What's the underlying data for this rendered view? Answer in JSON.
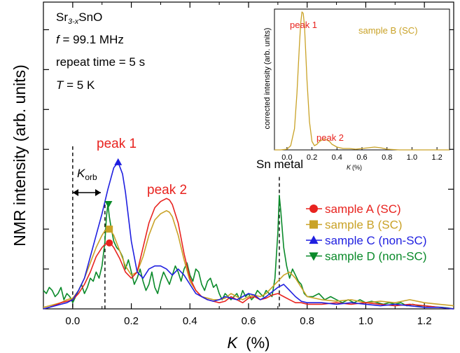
{
  "chart_data": [
    {
      "id": "main",
      "type": "line",
      "xlabel_var": "K",
      "xlabel_unit": "(%)",
      "ylabel": "NMR intensity (arb. units)",
      "xlim": [
        -0.1,
        1.3
      ],
      "ylim": [
        0,
        1.0
      ],
      "x_ticks": [
        0.0,
        0.2,
        0.4,
        0.6,
        0.8,
        1.0,
        1.2
      ],
      "x_tick_labels": [
        "0.0",
        "0.2",
        "0.4",
        "0.6",
        "0.8",
        "1.0",
        "1.2"
      ],
      "x_minor_ticks": [
        -0.1,
        0.1,
        0.3,
        0.5,
        0.7,
        0.9,
        1.1,
        1.3
      ],
      "y_ticks": [
        0.13,
        0.26,
        0.39,
        0.52,
        0.65,
        0.78,
        0.91
      ],
      "grid": false,
      "legend_position": "right",
      "info_lines": [
        {
          "prefix": "Sr",
          "sub": "3-x",
          "suffix": "SnO"
        },
        {
          "var": "f",
          "text": " = 99.1 MHz"
        },
        {
          "text": "repeat time = 5 s"
        },
        {
          "var": "T",
          "text": " = 5 K"
        }
      ],
      "annotations": [
        {
          "text": "peak 1",
          "color": "#e8231f"
        },
        {
          "text": "peak 2",
          "color": "#e8231f"
        },
        {
          "text": "Sn metal",
          "color": "#000000"
        },
        {
          "var": "K",
          "sub": "orb",
          "color": "#000000"
        }
      ],
      "reference_lines": [
        0.0,
        0.11,
        0.705
      ],
      "series": [
        {
          "name": "sample A (SC)",
          "color": "#e8231f",
          "marker": "circle",
          "marker_point": [
            0.125,
            0.215
          ],
          "x": [
            -0.1,
            -0.08,
            -0.06,
            -0.04,
            -0.02,
            0.0,
            0.02,
            0.04,
            0.06,
            0.08,
            0.1,
            0.11,
            0.12,
            0.13,
            0.14,
            0.16,
            0.18,
            0.2,
            0.22,
            0.24,
            0.26,
            0.28,
            0.3,
            0.32,
            0.33,
            0.34,
            0.36,
            0.38,
            0.4,
            0.42,
            0.44,
            0.46,
            0.48,
            0.5,
            0.52,
            0.54,
            0.56,
            0.58,
            0.6,
            0.62,
            0.64,
            0.66,
            0.68,
            0.7,
            0.72,
            0.74,
            0.76,
            0.78,
            0.8,
            0.85,
            0.9,
            0.95,
            1.0,
            1.05,
            1.1,
            1.15,
            1.2,
            1.25,
            1.3
          ],
          "y": [
            0.0,
            0.005,
            0.012,
            0.02,
            0.025,
            0.03,
            0.05,
            0.08,
            0.12,
            0.17,
            0.2,
            0.21,
            0.215,
            0.212,
            0.2,
            0.165,
            0.12,
            0.1,
            0.12,
            0.2,
            0.28,
            0.33,
            0.35,
            0.36,
            0.355,
            0.34,
            0.28,
            0.18,
            0.1,
            0.06,
            0.04,
            0.03,
            0.025,
            0.02,
            0.025,
            0.04,
            0.03,
            0.02,
            0.035,
            0.04,
            0.03,
            0.035,
            0.045,
            0.05,
            0.04,
            0.03,
            0.02,
            0.02,
            0.015,
            0.015,
            0.02,
            0.015,
            0.02,
            0.015,
            0.01,
            0.015,
            0.01,
            0.005,
            0.0
          ]
        },
        {
          "name": "sample B (SC)",
          "color": "#c9a227",
          "marker": "square",
          "marker_point": [
            0.125,
            0.26
          ],
          "x": [
            -0.1,
            -0.08,
            -0.06,
            -0.04,
            -0.02,
            0.0,
            0.02,
            0.04,
            0.06,
            0.08,
            0.1,
            0.11,
            0.12,
            0.13,
            0.14,
            0.16,
            0.18,
            0.2,
            0.22,
            0.24,
            0.26,
            0.28,
            0.3,
            0.32,
            0.33,
            0.34,
            0.36,
            0.38,
            0.4,
            0.42,
            0.44,
            0.46,
            0.48,
            0.5,
            0.52,
            0.54,
            0.56,
            0.58,
            0.6,
            0.62,
            0.64,
            0.66,
            0.68,
            0.7,
            0.72,
            0.74,
            0.76,
            0.78,
            0.8,
            0.85,
            0.9,
            0.95,
            1.0,
            1.05,
            1.1,
            1.15,
            1.2,
            1.25,
            1.3
          ],
          "y": [
            0.005,
            0.01,
            0.015,
            0.02,
            0.03,
            0.035,
            0.06,
            0.1,
            0.15,
            0.2,
            0.24,
            0.255,
            0.26,
            0.255,
            0.24,
            0.19,
            0.14,
            0.11,
            0.12,
            0.17,
            0.24,
            0.29,
            0.31,
            0.32,
            0.315,
            0.3,
            0.24,
            0.16,
            0.09,
            0.06,
            0.04,
            0.035,
            0.03,
            0.03,
            0.035,
            0.05,
            0.04,
            0.03,
            0.04,
            0.045,
            0.04,
            0.05,
            0.07,
            0.09,
            0.11,
            0.12,
            0.1,
            0.07,
            0.04,
            0.03,
            0.025,
            0.03,
            0.02,
            0.025,
            0.02,
            0.03,
            0.02,
            0.015,
            0.01
          ]
        },
        {
          "name": "sample C (non-SC)",
          "color": "#1f1fe0",
          "marker": "triangle-up",
          "marker_point": [
            0.155,
            0.478
          ],
          "x": [
            -0.1,
            -0.08,
            -0.06,
            -0.04,
            -0.02,
            0.0,
            0.02,
            0.04,
            0.06,
            0.08,
            0.1,
            0.12,
            0.14,
            0.155,
            0.17,
            0.18,
            0.2,
            0.22,
            0.24,
            0.26,
            0.28,
            0.3,
            0.32,
            0.34,
            0.36,
            0.38,
            0.4,
            0.42,
            0.44,
            0.46,
            0.48,
            0.5,
            0.52,
            0.54,
            0.56,
            0.58,
            0.6,
            0.62,
            0.64,
            0.66,
            0.68,
            0.7,
            0.72,
            0.74,
            0.76,
            0.78,
            0.8,
            0.85,
            0.9,
            0.95,
            1.0,
            1.05,
            1.1,
            1.15,
            1.2,
            1.25,
            1.3
          ],
          "y": [
            0.0,
            0.005,
            0.01,
            0.015,
            0.02,
            0.03,
            0.06,
            0.1,
            0.17,
            0.24,
            0.31,
            0.39,
            0.46,
            0.478,
            0.44,
            0.38,
            0.22,
            0.12,
            0.1,
            0.13,
            0.14,
            0.14,
            0.13,
            0.11,
            0.13,
            0.11,
            0.08,
            0.05,
            0.04,
            0.03,
            0.025,
            0.03,
            0.04,
            0.035,
            0.03,
            0.04,
            0.05,
            0.045,
            0.03,
            0.04,
            0.055,
            0.07,
            0.08,
            0.06,
            0.04,
            0.025,
            0.02,
            0.02,
            0.015,
            0.02,
            0.015,
            0.01,
            0.015,
            0.01,
            0.005,
            0.005,
            0.0
          ]
        },
        {
          "name": "sample D (non-SC)",
          "color": "#0a8a2a",
          "marker": "triangle-down",
          "marker_point": [
            0.122,
            0.342
          ],
          "x": [
            -0.1,
            -0.09,
            -0.08,
            -0.07,
            -0.06,
            -0.05,
            -0.04,
            -0.03,
            -0.02,
            -0.01,
            0.0,
            0.01,
            0.02,
            0.03,
            0.04,
            0.05,
            0.06,
            0.07,
            0.08,
            0.09,
            0.1,
            0.11,
            0.115,
            0.12,
            0.125,
            0.13,
            0.14,
            0.15,
            0.16,
            0.17,
            0.18,
            0.19,
            0.2,
            0.21,
            0.22,
            0.23,
            0.24,
            0.25,
            0.26,
            0.27,
            0.28,
            0.29,
            0.3,
            0.31,
            0.32,
            0.33,
            0.34,
            0.35,
            0.36,
            0.37,
            0.38,
            0.39,
            0.4,
            0.41,
            0.42,
            0.43,
            0.44,
            0.45,
            0.46,
            0.47,
            0.48,
            0.49,
            0.5,
            0.51,
            0.52,
            0.53,
            0.54,
            0.55,
            0.56,
            0.57,
            0.58,
            0.59,
            0.6,
            0.61,
            0.62,
            0.63,
            0.64,
            0.65,
            0.66,
            0.67,
            0.68,
            0.69,
            0.7,
            0.705,
            0.71,
            0.72,
            0.73,
            0.74,
            0.75,
            0.76,
            0.77,
            0.78,
            0.79,
            0.8,
            0.82,
            0.84,
            0.86,
            0.88,
            0.9,
            0.92,
            0.94,
            0.96,
            0.98,
            1.0,
            1.02,
            1.04,
            1.06,
            1.08,
            1.1,
            1.12,
            1.14,
            1.16,
            1.18,
            1.2,
            1.22,
            1.24,
            1.26,
            1.28,
            1.3
          ],
          "y": [
            0.06,
            0.05,
            0.07,
            0.06,
            0.04,
            0.05,
            0.07,
            0.03,
            0.05,
            0.04,
            0.02,
            0.04,
            0.06,
            0.08,
            0.05,
            0.07,
            0.1,
            0.09,
            0.12,
            0.1,
            0.14,
            0.22,
            0.3,
            0.342,
            0.3,
            0.27,
            0.22,
            0.2,
            0.19,
            0.17,
            0.13,
            0.16,
            0.12,
            0.08,
            0.1,
            0.13,
            0.09,
            0.06,
            0.08,
            0.12,
            0.07,
            0.05,
            0.09,
            0.12,
            0.1,
            0.08,
            0.11,
            0.14,
            0.12,
            0.09,
            0.13,
            0.15,
            0.11,
            0.09,
            0.13,
            0.12,
            0.08,
            0.06,
            0.09,
            0.1,
            0.07,
            0.08,
            0.05,
            0.03,
            0.05,
            0.04,
            0.03,
            0.04,
            0.05,
            0.03,
            0.06,
            0.04,
            0.05,
            0.03,
            0.04,
            0.06,
            0.05,
            0.04,
            0.06,
            0.05,
            0.04,
            0.1,
            0.25,
            0.37,
            0.32,
            0.2,
            0.14,
            0.1,
            0.13,
            0.11,
            0.09,
            0.08,
            0.05,
            0.04,
            0.04,
            0.05,
            0.03,
            0.04,
            0.03,
            0.02,
            0.03,
            0.02,
            0.03,
            0.02,
            0.025,
            0.02,
            0.015,
            0.02,
            0.015,
            0.02,
            0.01,
            0.015,
            0.01,
            0.01,
            0.008,
            0.006,
            0.005,
            0.003,
            0.0
          ]
        }
      ]
    },
    {
      "id": "inset",
      "type": "line",
      "xlabel_var": "K",
      "xlabel_unit": "(%)",
      "ylabel": "corrected intensity (arb. units)",
      "xlim": [
        -0.1,
        1.3
      ],
      "ylim": [
        0,
        1.0
      ],
      "x_ticks": [
        0.0,
        0.2,
        0.4,
        0.6,
        0.8,
        1.0,
        1.2
      ],
      "x_tick_labels": [
        "0.0",
        "0.2",
        "0.4",
        "0.6",
        "0.8",
        "1.0",
        "1.2"
      ],
      "series_label": "sample B (SC)",
      "series_label_color": "#c9a227",
      "annotations": [
        {
          "text": "peak 1",
          "color": "#e8231f"
        },
        {
          "text": "peak 2",
          "color": "#e8231f"
        }
      ],
      "series": [
        {
          "color": "#c9a227",
          "x": [
            -0.1,
            -0.05,
            0.0,
            0.03,
            0.06,
            0.08,
            0.1,
            0.11,
            0.12,
            0.13,
            0.14,
            0.15,
            0.16,
            0.18,
            0.2,
            0.22,
            0.24,
            0.26,
            0.28,
            0.3,
            0.32,
            0.34,
            0.36,
            0.4,
            0.45,
            0.5,
            0.55,
            0.6,
            0.65,
            0.7,
            0.75,
            0.8,
            0.9,
            1.0,
            1.1,
            1.2,
            1.3
          ],
          "y": [
            0.0,
            0.0,
            0.005,
            0.03,
            0.15,
            0.4,
            0.75,
            0.9,
            0.98,
            0.97,
            0.88,
            0.7,
            0.5,
            0.2,
            0.06,
            0.03,
            0.04,
            0.06,
            0.07,
            0.075,
            0.07,
            0.06,
            0.04,
            0.02,
            0.01,
            0.01,
            0.005,
            0.01,
            0.015,
            0.02,
            0.015,
            0.005,
            0.0,
            0.0,
            0.0,
            0.0,
            0.0
          ]
        }
      ]
    }
  ]
}
